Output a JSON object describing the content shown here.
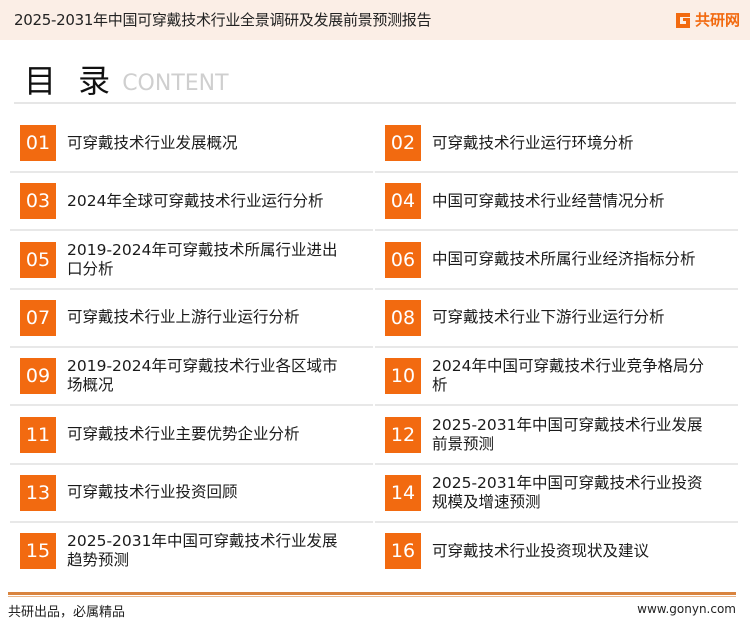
{
  "header": {
    "title": "2025-2031年中国可穿戴技术行业全景调研及发展前景预测报告",
    "logo_text": "共研网",
    "logo_icon": "g-logo-icon"
  },
  "heading": {
    "zh": "目 录",
    "en": "CONTENT"
  },
  "colors": {
    "accent": "#f26a10",
    "header_bg": "#fbeee6"
  },
  "toc": [
    {
      "num": "01",
      "label": "可穿戴技术行业发展概况"
    },
    {
      "num": "02",
      "label": "可穿戴技术行业运行环境分析"
    },
    {
      "num": "03",
      "label": "2024年全球可穿戴技术行业运行分析"
    },
    {
      "num": "04",
      "label": "中国可穿戴技术行业经营情况分析"
    },
    {
      "num": "05",
      "label": "2019-2024年可穿戴技术所属行业进出口分析"
    },
    {
      "num": "06",
      "label": "中国可穿戴技术所属行业经济指标分析"
    },
    {
      "num": "07",
      "label": "可穿戴技术行业上游行业运行分析"
    },
    {
      "num": "08",
      "label": "可穿戴技术行业下游行业运行分析"
    },
    {
      "num": "09",
      "label": "2019-2024年可穿戴技术行业各区域市场概况"
    },
    {
      "num": "10",
      "label": "2024年中国可穿戴技术行业竞争格局分析"
    },
    {
      "num": "11",
      "label": "可穿戴技术行业主要优势企业分析"
    },
    {
      "num": "12",
      "label": "2025-2031年中国可穿戴技术行业发展前景预测"
    },
    {
      "num": "13",
      "label": "可穿戴技术行业投资回顾"
    },
    {
      "num": "14",
      "label": "2025-2031年中国可穿戴技术行业投资规模及增速预测"
    },
    {
      "num": "15",
      "label": "2025-2031年中国可穿戴技术行业发展趋势预测"
    },
    {
      "num": "16",
      "label": "可穿戴技术行业投资现状及建议"
    }
  ],
  "footer": {
    "slogan": "共研出品，必属精品",
    "url": "www.gonyn.com"
  }
}
